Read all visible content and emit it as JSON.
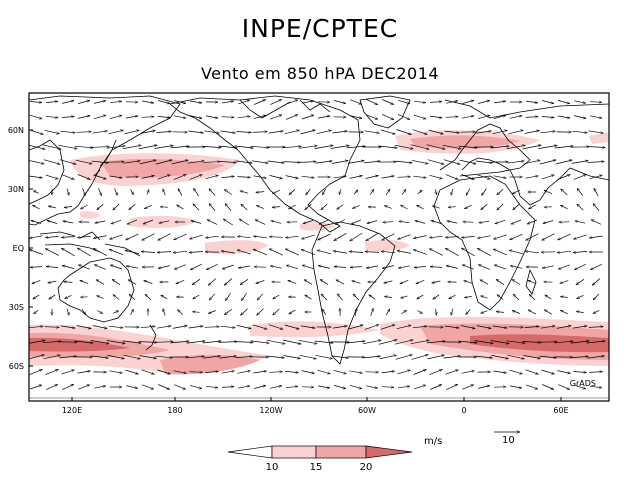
{
  "header": {
    "title": "INPE/CPTEC",
    "subtitle": "Vento em 850 hPA DEC2014"
  },
  "map": {
    "lat_labels": [
      "60N",
      "30N",
      "EQ",
      "30S",
      "60S"
    ],
    "lon_labels": [
      "120E",
      "180",
      "120W",
      "60W",
      "0",
      "60E"
    ],
    "corner_label": "GrADS"
  },
  "legend": {
    "units": "m/s",
    "reference_vector": "10",
    "thresholds": [
      "10",
      "15",
      "20"
    ],
    "colors": [
      "#ffffff",
      "#fbd2d2",
      "#f1a6a6",
      "#d66a6a",
      "#bf3f3f"
    ]
  }
}
